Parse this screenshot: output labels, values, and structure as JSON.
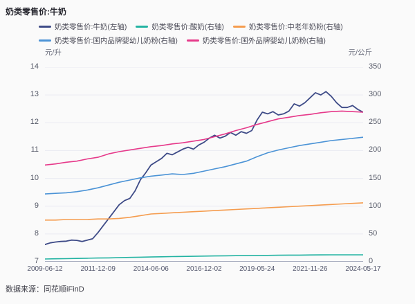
{
  "header": {
    "title": "奶类零售价:牛奶"
  },
  "footer": {
    "source": "数据来源：同花顺iFinD"
  },
  "chart_data": {
    "type": "line",
    "title": "奶类零售价:牛奶",
    "left_axis_unit": "元/升",
    "right_axis_unit": "元/公斤",
    "left_ylim": [
      7,
      14
    ],
    "right_ylim": [
      0,
      350
    ],
    "left_ticks": [
      "14",
      "13",
      "12",
      "11",
      "10",
      "9",
      "8",
      "7"
    ],
    "right_ticks": [
      "350",
      "300",
      "250",
      "200",
      "150",
      "100",
      "50",
      "0"
    ],
    "x_ticks": [
      "2009-06-12",
      "2011-12-09",
      "2014-06-06",
      "2016-12-02",
      "2019-05-24",
      "2021-11-26",
      "2024-05-17"
    ],
    "x_range": [
      "2009-06-12",
      "2024-05-17"
    ],
    "grid": "horizontal",
    "legend_position": "top",
    "legend_rows": [
      [
        0,
        1,
        2
      ],
      [
        3,
        4
      ]
    ],
    "colors": {
      "grid": "#e9eaf2",
      "axis_line": "#a9aec0",
      "background": "#fafafa"
    },
    "series": [
      {
        "id": "milk",
        "label": "奶类零售价:牛奶(左轴)",
        "axis": "left",
        "color": "#3e4b87",
        "width": 1.8,
        "values": [
          7.62,
          7.68,
          7.71,
          7.73,
          7.74,
          7.78,
          7.77,
          7.73,
          7.78,
          7.83,
          8.05,
          8.3,
          8.55,
          8.8,
          9.05,
          9.2,
          9.28,
          9.55,
          9.95,
          10.2,
          10.48,
          10.6,
          10.72,
          10.9,
          10.85,
          10.95,
          11.05,
          11.12,
          11.05,
          11.2,
          11.3,
          11.45,
          11.55,
          11.45,
          11.52,
          11.65,
          11.55,
          11.68,
          11.62,
          11.72,
          12.1,
          12.38,
          12.32,
          12.4,
          12.28,
          12.32,
          12.42,
          12.68,
          12.6,
          12.72,
          12.9,
          13.08,
          13.0,
          13.12,
          12.95,
          12.72,
          12.55,
          12.55,
          12.62,
          12.48,
          12.38
        ]
      },
      {
        "id": "yogurt",
        "label": "奶类零售价:酸奶(右轴)",
        "axis": "right",
        "color": "#23b3a2",
        "width": 1.6,
        "values": [
          5,
          5.3,
          5.6,
          6,
          6.3,
          6.7,
          7,
          7.4,
          7.8,
          8.2,
          8.6,
          9,
          9.3,
          9.6,
          9.9,
          10.2,
          10.5,
          10.7,
          10.9,
          11.1,
          11.3,
          11.5,
          11.7,
          11.9,
          12,
          12.2,
          12.3,
          12.4,
          12.5,
          12.5,
          12.5
        ]
      },
      {
        "id": "middle-aged-milk-powder",
        "label": "奶类零售价:中老年奶粉(右轴)",
        "axis": "right",
        "color": "#f59c4e",
        "width": 1.6,
        "values": [
          75,
          75,
          76,
          76,
          76,
          77,
          77,
          78,
          80,
          83,
          86,
          87,
          88,
          89,
          90,
          91,
          92,
          93,
          94,
          95,
          96,
          97,
          98,
          99,
          100,
          101,
          102,
          103,
          104,
          105,
          106
        ]
      },
      {
        "id": "domestic-infant-formula",
        "label": "奶类零售价:国内品牌婴幼儿奶粉(右轴)",
        "axis": "right",
        "color": "#4b93d6",
        "width": 1.6,
        "values": [
          122,
          123,
          124,
          126,
          129,
          133,
          138,
          143,
          147,
          151,
          154,
          156,
          158,
          157,
          159,
          163,
          167,
          171,
          176,
          181,
          189,
          196,
          201,
          205,
          209,
          212,
          215,
          218,
          220,
          222,
          224
        ]
      },
      {
        "id": "foreign-infant-formula",
        "label": "奶类零售价:国外品牌婴幼儿奶粉(右轴)",
        "axis": "right",
        "color": "#e6398a",
        "width": 1.6,
        "values": [
          174,
          176,
          179,
          181,
          185,
          188,
          194,
          198,
          201,
          204,
          207,
          209,
          212,
          214,
          217,
          220,
          225,
          230,
          236,
          241,
          247,
          252,
          257,
          260,
          263,
          265,
          268,
          270,
          271,
          270,
          269
        ]
      }
    ]
  }
}
